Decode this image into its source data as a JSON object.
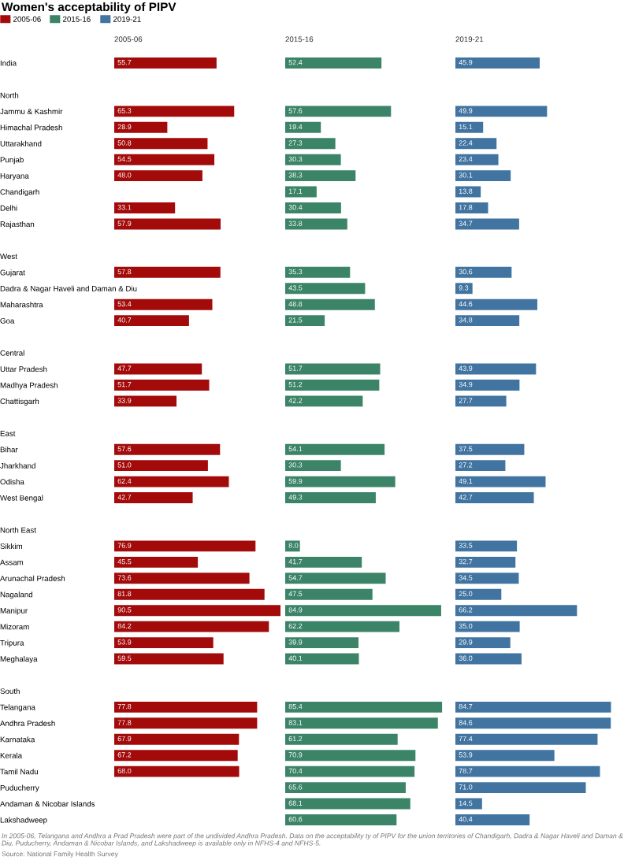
{
  "chart_data": [
    {
      "type": "bar",
      "orientation": "horizontal",
      "title": "Women's acceptability of PIPV",
      "xlabel": "2005-06",
      "legend": "top left",
      "grid": false,
      "tick_labels": "y",
      "categories": [
        "India",
        null,
        "North",
        "Jammu & Kashmir",
        "Himachal Pradesh",
        "Uttarakhand",
        "Punjab",
        "Haryana",
        "Chandigarh",
        "Delhi",
        "Rajasthan",
        null,
        "West",
        "Gujarat",
        "Dadra & Nagar Haveli and Daman & Diu",
        "Maharashtra",
        "Goa",
        null,
        "Central",
        "Uttar Pradesh",
        "Madhya Pradesh",
        "Chattisgarh",
        null,
        "East",
        "Bihar",
        "Jharkhand",
        "Odisha",
        "West Bengal",
        null,
        "North East",
        "Sikkim",
        "Assam",
        "Arunachal Pradesh",
        "Nagaland",
        "Manipur",
        "Mizoram",
        "Tripura",
        "Meghalaya",
        null,
        "South",
        "Telangana",
        "Andhra Pradesh",
        "Karnataka",
        "Kerala",
        "Tamil Nadu",
        "Puducherry",
        "Andaman & Nicobar Islands",
        "Lakshadweep"
      ],
      "series": [
        {
          "name": "2005-06",
          "color": "#a30b0b",
          "values": [
            55.7,
            null,
            null,
            65.3,
            28.9,
            50.8,
            54.5,
            48.0,
            null,
            33.1,
            57.9,
            null,
            null,
            57.8,
            null,
            53.4,
            40.7,
            null,
            null,
            47.7,
            51.7,
            33.9,
            null,
            null,
            57.6,
            51.0,
            62.4,
            42.7,
            null,
            null,
            76.9,
            45.5,
            73.6,
            81.8,
            90.5,
            84.2,
            53.9,
            59.5,
            null,
            null,
            77.8,
            77.8,
            67.9,
            67.2,
            68.0,
            null,
            null,
            null
          ],
          "value_labels": [
            "55.7",
            null,
            null,
            "65.3",
            "28.9",
            "50.8",
            "54.5",
            "48.0",
            null,
            "33.1",
            "57.9",
            null,
            null,
            "57.8",
            null,
            "53.4",
            "40.7",
            null,
            null,
            "47.7",
            "51.7",
            "33.9",
            null,
            null,
            "57.6",
            "51.0",
            "62.4",
            "42.7",
            null,
            null,
            "76.9",
            "45.5",
            "73.6",
            "81.8",
            "90.5",
            "84.2",
            "53.9",
            "59.5",
            null,
            null,
            "77.8",
            "77.8",
            "67.9",
            "67.2",
            "68.0",
            null,
            null,
            null
          ]
        }
      ],
      "annotations": [
        "In 2005-06, Telangana and Andhra a Prad Pradesh were part of the undivided Andhra Pradesh. Data on the acceptability ty of PIPV for the union territories of Chandigarh, Dadra & Nagar Haveli and Daman & Diu, Puducherry, Andaman & Nicobar Islands, and Lakshadweep is available only in NFHS-4 and NFHS-5.",
        "Source: National Family Health Survey"
      ]
    },
    {
      "type": "bar",
      "orientation": "horizontal",
      "xlabel": "2015-16",
      "legend": "top left",
      "grid": false,
      "tick_labels": false,
      "series": [
        {
          "name": "2015-16",
          "color": "#3b8467",
          "values": [
            52.4,
            null,
            null,
            57.6,
            19.4,
            27.3,
            30.3,
            38.3,
            17.1,
            30.4,
            33.8,
            null,
            null,
            35.3,
            43.5,
            48.8,
            21.5,
            null,
            null,
            51.7,
            51.2,
            42.2,
            null,
            null,
            54.1,
            30.3,
            59.9,
            49.3,
            null,
            null,
            8.0,
            41.7,
            54.7,
            47.5,
            84.9,
            62.2,
            39.9,
            40.1,
            null,
            null,
            85.4,
            83.1,
            61.2,
            70.9,
            70.4,
            65.6,
            68.1,
            60.6
          ],
          "value_labels": [
            "52.4",
            null,
            null,
            "57.6",
            "19.4",
            "27.3",
            "30.3",
            "38.3",
            "17.1",
            "30.4",
            "33.8",
            null,
            null,
            "35.3",
            "43.5",
            "48.8",
            "21.5",
            null,
            null,
            "51.7",
            "51.2",
            "42.2",
            null,
            null,
            "54.1",
            "30.3",
            "59.9",
            "49.3",
            null,
            null,
            "8.0",
            "41.7",
            "54.7",
            "47.5",
            "84.9",
            "62.2",
            "39.9",
            "40.1",
            null,
            null,
            "85.4",
            "83.1",
            "61.2",
            "70.9",
            "70.4",
            "65.6",
            "68.1",
            "60.6"
          ]
        }
      ]
    },
    {
      "type": "bar",
      "orientation": "horizontal",
      "xlabel": "2019-21",
      "legend": "top left",
      "grid": false,
      "tick_labels": false,
      "series": [
        {
          "name": "2019-21",
          "color": "#4174a0",
          "values": [
            45.9,
            null,
            null,
            49.9,
            15.1,
            22.4,
            23.4,
            30.1,
            13.8,
            17.8,
            34.7,
            null,
            null,
            30.6,
            9.3,
            44.6,
            34.8,
            null,
            null,
            43.9,
            34.9,
            27.7,
            null,
            null,
            37.5,
            27.2,
            49.1,
            42.7,
            null,
            null,
            33.5,
            32.7,
            34.5,
            25.0,
            66.2,
            35.0,
            29.9,
            36.0,
            null,
            null,
            84.7,
            84.6,
            77.4,
            53.9,
            78.7,
            71.0,
            14.5,
            40.4
          ],
          "value_labels": [
            "45.9",
            null,
            null,
            "49.9",
            "15.1",
            "22.4",
            "23.4",
            "30.1",
            "13.8",
            "17.8",
            "34.7",
            null,
            null,
            "30.6",
            "9.3",
            "44.6",
            "34.8",
            null,
            null,
            "43.9",
            "34.9",
            "27.7",
            null,
            null,
            "37.5",
            "27.2",
            "49.1",
            "42.7",
            null,
            null,
            "33.5",
            "32.7",
            "34.5",
            "25.0",
            "66.2",
            "35.0",
            "29.9",
            "36.0",
            null,
            null,
            "84.7",
            "84.6",
            "77.4",
            "53.9",
            "78.7",
            "71.0",
            "14.5",
            "40.4"
          ]
        }
      ]
    }
  ]
}
